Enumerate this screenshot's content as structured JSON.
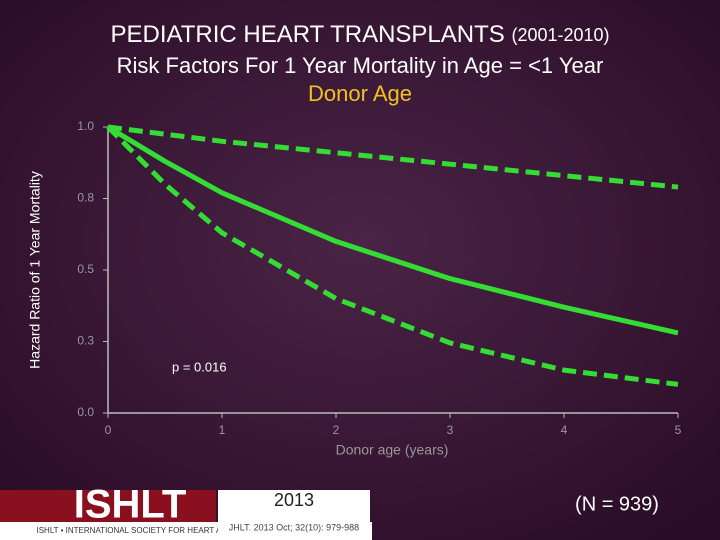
{
  "chart_data": {
    "type": "line",
    "title": "PEDIATRIC HEART TRANSPLANTS",
    "title_suffix": "(2001-2010)",
    "subtitle": "Risk Factors For 1 Year Mortality in Age = <1 Year",
    "subtitle_highlight": "Donor Age",
    "x_label": "Donor age (years)",
    "y_label": "Hazard Ratio of 1 Year Mortality",
    "x": [
      0,
      0.5,
      1,
      2,
      3,
      4,
      5
    ],
    "series": [
      {
        "color": "#33dd33",
        "dashed": false,
        "values": [
          1.0,
          0.88,
          0.77,
          0.6,
          0.47,
          0.37,
          0.28
        ]
      },
      {
        "color": "#33dd33",
        "dashed": true,
        "values": [
          1.0,
          0.975,
          0.95,
          0.91,
          0.87,
          0.83,
          0.79
        ]
      },
      {
        "color": "#33dd33",
        "dashed": true,
        "values": [
          1.0,
          0.8,
          0.63,
          0.4,
          0.245,
          0.15,
          0.1
        ]
      }
    ],
    "xlim": [
      0,
      5
    ],
    "xticks": [
      0,
      1,
      2,
      3,
      4,
      5
    ],
    "ylim": [
      0,
      1
    ],
    "yticks": [
      {
        "value": 0,
        "label": "0.0"
      },
      {
        "value": 0.25,
        "label": "0.3"
      },
      {
        "value": 0.5,
        "label": "0.5"
      },
      {
        "value": 0.75,
        "label": "0.8"
      },
      {
        "value": 1,
        "label": "1.0"
      }
    ],
    "annotation": "p = 0.016"
  },
  "footer": {
    "logo": "ISHLT",
    "society": "ISHLT • INTERNATIONAL SOCIETY FOR HEART AND LUNG TRANSPLANTATION",
    "year": "2013",
    "citation": "JHLT. 2013 Oct; 32(10): 979-988",
    "n_label": "(N = 939)"
  }
}
